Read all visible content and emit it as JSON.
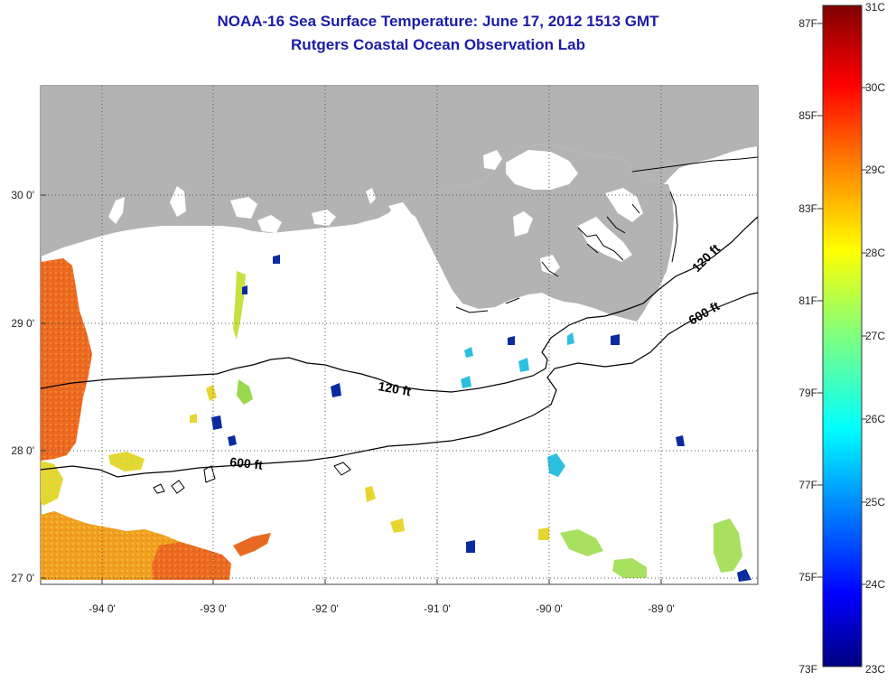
{
  "title": {
    "line1": "NOAA-16 Sea Surface Temperature:  June 17, 2012 1513 GMT",
    "line2": "Rutgers Coastal Ocean Observation Lab"
  },
  "axes": {
    "lon_ticks": [
      "-94 0'",
      "-93 0'",
      "-92 0'",
      "-91 0'",
      "-90 0'",
      "-89 0'"
    ],
    "lat_ticks": [
      "30 0'",
      "29 0'",
      "28 0'",
      "27 0'"
    ]
  },
  "contours": {
    "label_120": "120 ft",
    "label_600": "600 ft"
  },
  "colorbar": {
    "f_labels": [
      "87F",
      "85F",
      "83F",
      "81F",
      "79F",
      "77F",
      "75F",
      "73F"
    ],
    "c_labels": [
      "31C",
      "30C",
      "29C",
      "28C",
      "27C",
      "26C",
      "25C",
      "24C",
      "23C"
    ]
  },
  "colors": {
    "land": "#b3b3b3",
    "title": "#1c1ca8",
    "warm_patch": "#ec6a22",
    "mid_patch": "#f0a020",
    "yellow_patch": "#e8d630",
    "cool_patch": "#2cc0e0",
    "cold_patch": "#0a2aa0"
  }
}
